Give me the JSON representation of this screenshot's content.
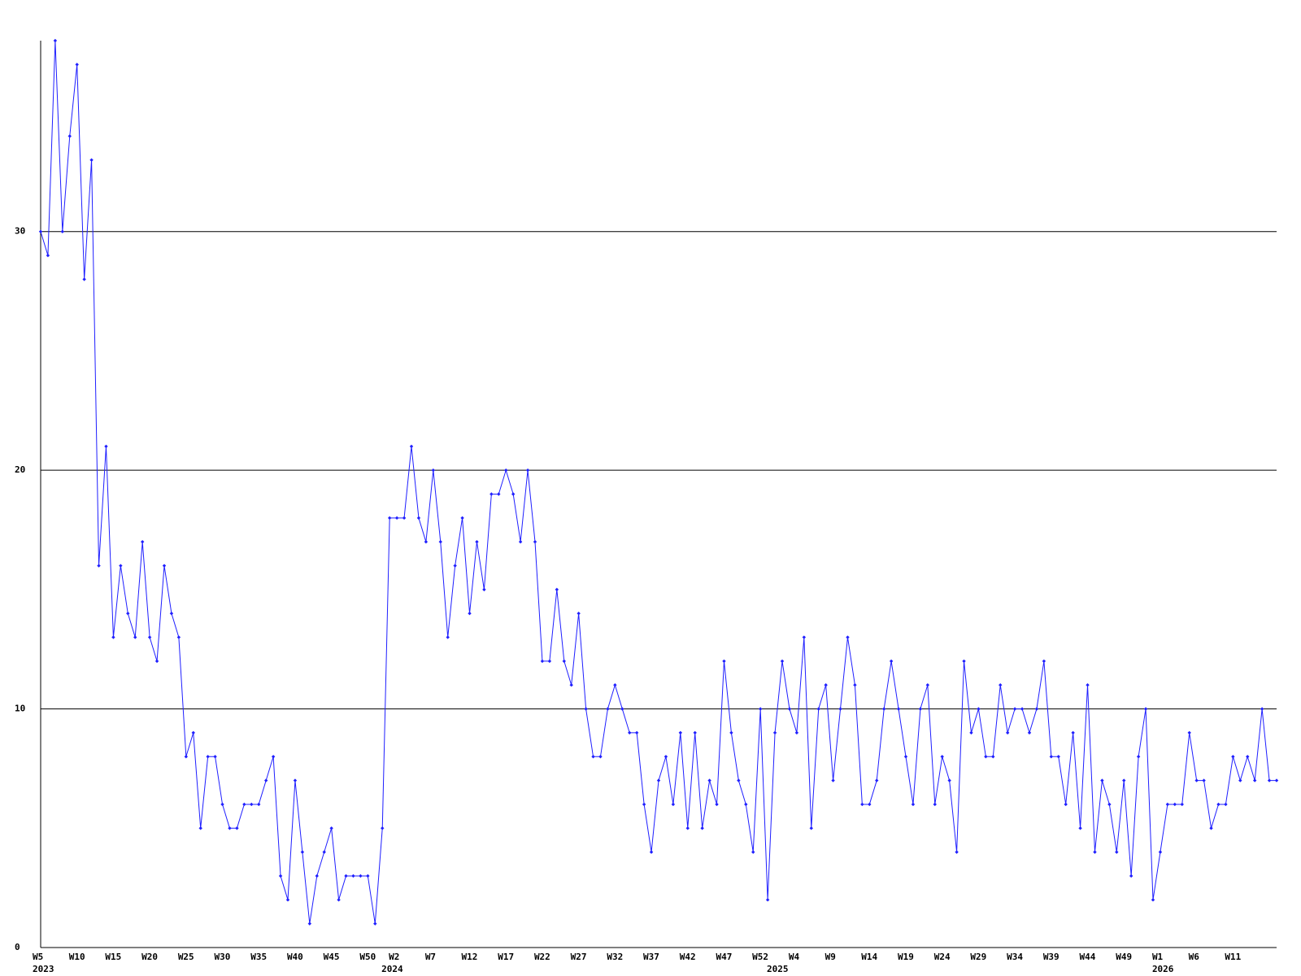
{
  "chart_data": {
    "type": "line",
    "color": "#1f1fff",
    "grid": true,
    "ylim": [
      0,
      38
    ],
    "yticks": [
      0,
      10,
      20,
      30
    ],
    "categories": [
      "W5",
      null,
      null,
      null,
      null,
      "W10",
      null,
      null,
      null,
      null,
      "W15",
      null,
      null,
      null,
      null,
      "W20",
      null,
      null,
      null,
      null,
      "W25",
      null,
      null,
      null,
      null,
      "W30",
      null,
      null,
      null,
      null,
      "W35",
      null,
      null,
      null,
      null,
      "W40",
      null,
      null,
      null,
      null,
      "W45",
      null,
      null,
      null,
      null,
      "W50",
      null,
      null,
      null,
      "W2",
      null,
      null,
      null,
      null,
      "W7",
      null,
      null,
      null,
      null,
      "W12",
      null,
      null,
      null,
      null,
      "W17",
      null,
      null,
      null,
      null,
      "W22",
      null,
      null,
      null,
      null,
      "W27",
      null,
      null,
      null,
      null,
      "W32",
      null,
      null,
      null,
      null,
      "W37",
      null,
      null,
      null,
      null,
      "W42",
      null,
      null,
      null,
      null,
      "W47",
      null,
      null,
      null,
      null,
      "W52",
      null,
      null,
      null,
      null,
      "W4",
      null,
      null,
      null,
      null,
      "W9",
      null,
      null,
      null,
      null,
      "W14",
      null,
      null,
      null,
      null,
      "W19",
      null,
      null,
      null,
      null,
      "W24",
      null,
      null,
      null,
      null,
      "W29",
      null,
      null,
      null,
      null,
      "W34",
      null,
      null,
      null,
      null,
      "W39",
      null,
      null,
      null,
      null,
      "W44",
      null,
      null,
      null,
      null,
      "W49",
      null,
      null,
      null,
      null,
      "W1",
      null,
      null,
      null,
      null,
      "W6",
      null,
      null,
      null,
      null,
      "W11",
      null,
      null,
      null,
      null,
      null,
      null
    ],
    "year_labels": [
      "2023",
      null,
      null,
      null,
      null,
      null,
      null,
      null,
      null,
      null,
      null,
      null,
      null,
      null,
      null,
      null,
      null,
      null,
      null,
      null,
      null,
      null,
      null,
      null,
      null,
      null,
      null,
      null,
      null,
      null,
      null,
      null,
      null,
      null,
      null,
      null,
      null,
      null,
      null,
      null,
      null,
      null,
      null,
      null,
      null,
      null,
      null,
      null,
      "2024",
      null,
      null,
      null,
      null,
      null,
      null,
      null,
      null,
      null,
      null,
      null,
      null,
      null,
      null,
      null,
      null,
      null,
      null,
      null,
      null,
      null,
      null,
      null,
      null,
      null,
      null,
      null,
      null,
      null,
      null,
      null,
      null,
      null,
      null,
      null,
      null,
      null,
      null,
      null,
      null,
      null,
      null,
      null,
      null,
      null,
      null,
      null,
      null,
      null,
      null,
      null,
      null,
      "2025",
      null,
      null,
      null,
      null,
      null,
      null,
      null,
      null,
      null,
      null,
      null,
      null,
      null,
      null,
      null,
      null,
      null,
      null,
      null,
      null,
      null,
      null,
      null,
      null,
      null,
      null,
      null,
      null,
      null,
      null,
      null,
      null,
      null,
      null,
      null,
      null,
      null,
      null,
      null,
      null,
      null,
      null,
      null,
      null,
      null,
      null,
      null,
      null,
      null,
      null,
      null,
      null,
      "2026",
      null,
      null,
      null,
      null,
      null,
      null,
      null,
      null,
      null,
      null,
      null,
      null,
      null,
      null,
      null,
      null
    ],
    "values": [
      30,
      29,
      38,
      30,
      34,
      37,
      28,
      33,
      16,
      21,
      13,
      16,
      14,
      13,
      17,
      13,
      12,
      16,
      14,
      13,
      8,
      9,
      5,
      8,
      8,
      6,
      5,
      5,
      6,
      6,
      6,
      7,
      8,
      3,
      2,
      7,
      4,
      1,
      3,
      4,
      5,
      2,
      3,
      3,
      3,
      3,
      1,
      5,
      18,
      18,
      18,
      21,
      18,
      17,
      20,
      17,
      13,
      16,
      18,
      14,
      17,
      15,
      19,
      19,
      20,
      19,
      17,
      20,
      17,
      12,
      12,
      15,
      12,
      11,
      14,
      10,
      8,
      8,
      10,
      11,
      10,
      9,
      9,
      6,
      4,
      7,
      8,
      6,
      9,
      5,
      9,
      5,
      7,
      6,
      12,
      9,
      7,
      6,
      4,
      10,
      2,
      9,
      12,
      10,
      9,
      13,
      5,
      10,
      11,
      7,
      10,
      13,
      11,
      6,
      6,
      7,
      10,
      12,
      10,
      8,
      6,
      10,
      11,
      6,
      8,
      7,
      4,
      12,
      9,
      10,
      8,
      8,
      11,
      9,
      10,
      10,
      9,
      10,
      12,
      8,
      8,
      6,
      9,
      5,
      11,
      4,
      7,
      6,
      4,
      7,
      3,
      8,
      10,
      2,
      4,
      6,
      6,
      6,
      9,
      7,
      7,
      5,
      6,
      6,
      8,
      7,
      8,
      7,
      10,
      7,
      7
    ]
  }
}
